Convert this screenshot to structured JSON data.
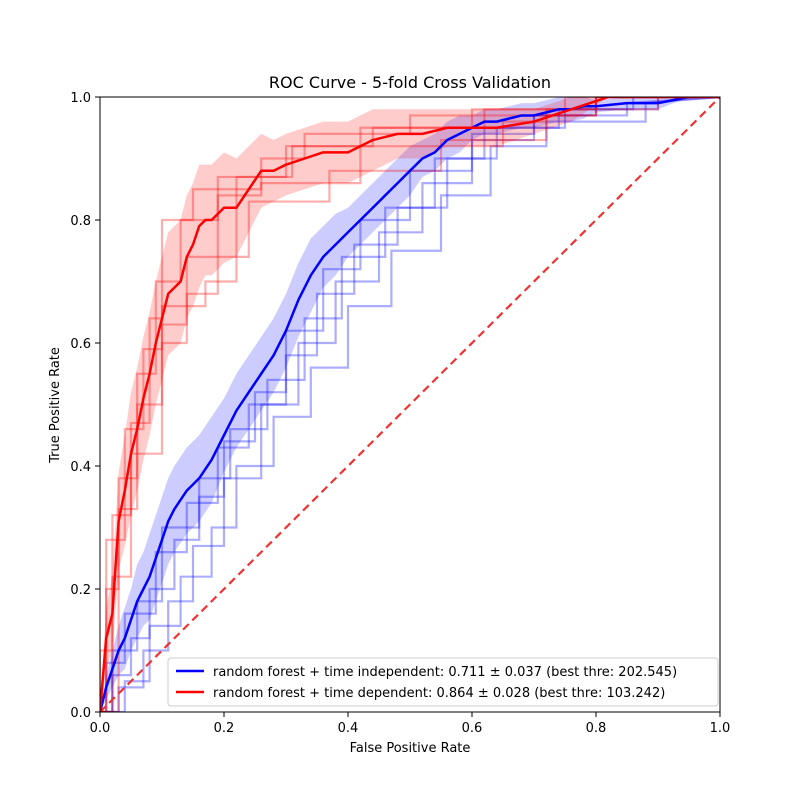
{
  "chart_data": {
    "type": "line",
    "title": "ROC Curve - 5-fold Cross Validation",
    "xlabel": "False Positive Rate",
    "ylabel": "True Positive Rate",
    "xlim": [
      0.0,
      1.0
    ],
    "ylim": [
      0.0,
      1.0
    ],
    "x_ticks": [
      "0.0",
      "0.2",
      "0.4",
      "0.6",
      "0.8",
      "1.0"
    ],
    "y_ticks": [
      "0.0",
      "0.2",
      "0.4",
      "0.6",
      "0.8",
      "1.0"
    ],
    "grid": false,
    "legend_position": "lower-right",
    "chance_line": {
      "x": [
        0,
        1
      ],
      "y": [
        0,
        1
      ],
      "color": "#ee3333",
      "style": "dashed"
    },
    "series": [
      {
        "name": "random forest + time independent: 0.711 ± 0.037 (best thre: 202.545)",
        "color": "#0000ff",
        "mean": {
          "x": [
            0,
            0.01,
            0.02,
            0.03,
            0.04,
            0.05,
            0.06,
            0.07,
            0.08,
            0.09,
            0.1,
            0.11,
            0.12,
            0.14,
            0.16,
            0.18,
            0.2,
            0.22,
            0.24,
            0.26,
            0.28,
            0.3,
            0.32,
            0.34,
            0.36,
            0.38,
            0.4,
            0.42,
            0.44,
            0.46,
            0.48,
            0.5,
            0.52,
            0.54,
            0.56,
            0.58,
            0.6,
            0.62,
            0.64,
            0.66,
            0.68,
            0.7,
            0.72,
            0.74,
            0.76,
            0.78,
            0.8,
            0.85,
            0.9,
            0.95,
            1.0
          ],
          "y": [
            0,
            0.04,
            0.07,
            0.1,
            0.12,
            0.15,
            0.18,
            0.2,
            0.22,
            0.25,
            0.28,
            0.31,
            0.33,
            0.36,
            0.38,
            0.41,
            0.45,
            0.49,
            0.52,
            0.55,
            0.58,
            0.62,
            0.67,
            0.71,
            0.74,
            0.76,
            0.78,
            0.8,
            0.82,
            0.84,
            0.86,
            0.88,
            0.9,
            0.91,
            0.93,
            0.94,
            0.95,
            0.96,
            0.96,
            0.965,
            0.97,
            0.97,
            0.975,
            0.98,
            0.98,
            0.985,
            0.985,
            0.99,
            0.99,
            1.0,
            1.0
          ]
        },
        "band_half_width": [
          0,
          0.02,
          0.03,
          0.04,
          0.05,
          0.05,
          0.06,
          0.06,
          0.07,
          0.07,
          0.07,
          0.07,
          0.07,
          0.07,
          0.07,
          0.07,
          0.06,
          0.06,
          0.06,
          0.06,
          0.06,
          0.06,
          0.06,
          0.06,
          0.05,
          0.05,
          0.04,
          0.04,
          0.04,
          0.04,
          0.04,
          0.04,
          0.03,
          0.03,
          0.03,
          0.03,
          0.02,
          0.02,
          0.02,
          0.02,
          0.02,
          0.02,
          0.02,
          0.02,
          0.02,
          0.02,
          0.01,
          0.01,
          0.01,
          0,
          0
        ],
        "folds": [
          {
            "x": [
              0,
              0.02,
              0.02,
              0.05,
              0.05,
              0.08,
              0.08,
              0.12,
              0.12,
              0.16,
              0.16,
              0.2,
              0.2,
              0.25,
              0.25,
              0.3,
              0.3,
              0.36,
              0.36,
              0.42,
              0.42,
              0.5,
              0.5,
              0.6,
              0.6,
              0.7,
              0.7,
              0.8,
              0.8,
              1.0
            ],
            "y": [
              0,
              0,
              0.06,
              0.06,
              0.12,
              0.12,
              0.2,
              0.2,
              0.28,
              0.28,
              0.35,
              0.35,
              0.44,
              0.44,
              0.52,
              0.52,
              0.62,
              0.62,
              0.72,
              0.72,
              0.8,
              0.8,
              0.88,
              0.88,
              0.94,
              0.94,
              0.97,
              0.97,
              1.0,
              1.0
            ]
          },
          {
            "x": [
              0,
              0.03,
              0.03,
              0.07,
              0.07,
              0.11,
              0.11,
              0.15,
              0.15,
              0.2,
              0.2,
              0.26,
              0.26,
              0.32,
              0.32,
              0.38,
              0.38,
              0.45,
              0.45,
              0.52,
              0.52,
              0.6,
              0.6,
              0.7,
              0.7,
              0.85,
              0.85,
              1.0
            ],
            "y": [
              0,
              0,
              0.04,
              0.04,
              0.1,
              0.1,
              0.18,
              0.18,
              0.27,
              0.27,
              0.38,
              0.38,
              0.5,
              0.5,
              0.6,
              0.6,
              0.7,
              0.7,
              0.78,
              0.78,
              0.86,
              0.86,
              0.93,
              0.93,
              0.97,
              0.97,
              0.99,
              1.0
            ]
          },
          {
            "x": [
              0,
              0.01,
              0.01,
              0.04,
              0.04,
              0.09,
              0.09,
              0.14,
              0.14,
              0.19,
              0.19,
              0.24,
              0.24,
              0.3,
              0.3,
              0.35,
              0.35,
              0.41,
              0.41,
              0.48,
              0.48,
              0.56,
              0.56,
              0.64,
              0.64,
              0.75,
              0.75,
              0.9,
              0.9,
              1.0
            ],
            "y": [
              0,
              0,
              0.08,
              0.08,
              0.16,
              0.16,
              0.26,
              0.26,
              0.34,
              0.34,
              0.43,
              0.43,
              0.5,
              0.5,
              0.58,
              0.58,
              0.68,
              0.68,
              0.76,
              0.76,
              0.82,
              0.82,
              0.9,
              0.9,
              0.95,
              0.95,
              0.98,
              0.98,
              1.0,
              1.0
            ]
          },
          {
            "x": [
              0,
              0.04,
              0.04,
              0.08,
              0.08,
              0.13,
              0.13,
              0.18,
              0.18,
              0.22,
              0.22,
              0.28,
              0.28,
              0.34,
              0.34,
              0.4,
              0.4,
              0.47,
              0.47,
              0.55,
              0.55,
              0.63,
              0.63,
              0.72,
              0.72,
              0.88,
              0.88,
              1.0
            ],
            "y": [
              0,
              0,
              0.05,
              0.05,
              0.14,
              0.14,
              0.22,
              0.22,
              0.3,
              0.3,
              0.4,
              0.4,
              0.48,
              0.48,
              0.56,
              0.56,
              0.66,
              0.66,
              0.75,
              0.75,
              0.84,
              0.84,
              0.92,
              0.92,
              0.96,
              0.96,
              0.99,
              1.0
            ]
          },
          {
            "x": [
              0,
              0.02,
              0.02,
              0.06,
              0.06,
              0.1,
              0.1,
              0.16,
              0.16,
              0.21,
              0.21,
              0.27,
              0.27,
              0.33,
              0.33,
              0.39,
              0.39,
              0.46,
              0.46,
              0.54,
              0.54,
              0.62,
              0.62,
              0.74,
              0.74,
              0.86,
              0.86,
              1.0
            ],
            "y": [
              0,
              0,
              0.1,
              0.1,
              0.18,
              0.18,
              0.3,
              0.3,
              0.38,
              0.38,
              0.46,
              0.46,
              0.54,
              0.54,
              0.64,
              0.64,
              0.74,
              0.74,
              0.82,
              0.82,
              0.9,
              0.9,
              0.95,
              0.95,
              0.98,
              0.98,
              1.0,
              1.0
            ]
          }
        ]
      },
      {
        "name": "random forest + time dependent: 0.864 ± 0.028 (best thre: 103.242)",
        "color": "#ff0000",
        "mean": {
          "x": [
            0,
            0.005,
            0.01,
            0.02,
            0.03,
            0.04,
            0.05,
            0.06,
            0.07,
            0.08,
            0.09,
            0.1,
            0.11,
            0.12,
            0.13,
            0.14,
            0.15,
            0.16,
            0.17,
            0.18,
            0.2,
            0.22,
            0.24,
            0.26,
            0.28,
            0.3,
            0.33,
            0.36,
            0.4,
            0.44,
            0.48,
            0.52,
            0.56,
            0.6,
            0.64,
            0.7,
            0.76,
            0.82,
            0.9,
            1.0
          ],
          "y": [
            0,
            0.06,
            0.12,
            0.16,
            0.31,
            0.36,
            0.42,
            0.46,
            0.51,
            0.55,
            0.6,
            0.64,
            0.68,
            0.69,
            0.7,
            0.74,
            0.76,
            0.79,
            0.8,
            0.8,
            0.82,
            0.82,
            0.85,
            0.88,
            0.88,
            0.89,
            0.9,
            0.91,
            0.91,
            0.93,
            0.94,
            0.94,
            0.95,
            0.95,
            0.95,
            0.96,
            0.98,
            1.0,
            1.0,
            1.0
          ]
        },
        "band_half_width": [
          0,
          0.03,
          0.05,
          0.06,
          0.08,
          0.09,
          0.1,
          0.1,
          0.1,
          0.1,
          0.1,
          0.1,
          0.1,
          0.1,
          0.1,
          0.1,
          0.1,
          0.1,
          0.09,
          0.09,
          0.09,
          0.08,
          0.07,
          0.06,
          0.05,
          0.05,
          0.05,
          0.05,
          0.05,
          0.05,
          0.04,
          0.04,
          0.03,
          0.03,
          0.03,
          0.02,
          0.02,
          0.0,
          0.0,
          0.0
        ],
        "folds": [
          {
            "x": [
              0,
              0.0,
              0.02,
              0.02,
              0.05,
              0.05,
              0.08,
              0.08,
              0.1,
              0.1,
              0.15,
              0.15,
              0.26,
              0.26,
              0.33,
              0.33,
              0.5,
              0.5,
              0.8,
              0.8,
              1.0
            ],
            "y": [
              0,
              0.1,
              0.1,
              0.32,
              0.32,
              0.47,
              0.47,
              0.64,
              0.64,
              0.8,
              0.8,
              0.85,
              0.85,
              0.9,
              0.9,
              0.94,
              0.94,
              0.97,
              0.97,
              1.0,
              1.0
            ]
          },
          {
            "x": [
              0,
              0.01,
              0.01,
              0.03,
              0.03,
              0.06,
              0.06,
              0.09,
              0.09,
              0.13,
              0.13,
              0.19,
              0.19,
              0.31,
              0.31,
              0.44,
              0.44,
              0.62,
              0.62,
              0.75,
              0.75,
              1.0
            ],
            "y": [
              0,
              0,
              0.2,
              0.2,
              0.38,
              0.38,
              0.55,
              0.55,
              0.7,
              0.7,
              0.8,
              0.8,
              0.87,
              0.87,
              0.92,
              0.92,
              0.95,
              0.95,
              0.98,
              0.98,
              1.0,
              1.0
            ]
          },
          {
            "x": [
              0,
              0.02,
              0.02,
              0.05,
              0.05,
              0.1,
              0.1,
              0.14,
              0.14,
              0.19,
              0.19,
              0.26,
              0.26,
              0.42,
              0.42,
              0.6,
              0.6,
              0.8,
              0.8,
              1.0
            ],
            "y": [
              0,
              0,
              0.22,
              0.22,
              0.42,
              0.42,
              0.6,
              0.6,
              0.68,
              0.68,
              0.84,
              0.84,
              0.86,
              0.86,
              0.95,
              0.95,
              0.98,
              0.98,
              1.0,
              1.0
            ]
          },
          {
            "x": [
              0,
              0.01,
              0.01,
              0.04,
              0.04,
              0.07,
              0.07,
              0.1,
              0.1,
              0.17,
              0.17,
              0.22,
              0.22,
              0.3,
              0.3,
              0.65,
              0.65,
              0.72,
              0.72,
              0.9,
              0.9,
              1.0
            ],
            "y": [
              0,
              0,
              0.28,
              0.28,
              0.46,
              0.46,
              0.59,
              0.59,
              0.66,
              0.66,
              0.7,
              0.7,
              0.87,
              0.87,
              0.92,
              0.92,
              0.96,
              0.96,
              0.98,
              0.98,
              1.0,
              1.0
            ]
          },
          {
            "x": [
              0,
              0.03,
              0.03,
              0.06,
              0.06,
              0.1,
              0.1,
              0.14,
              0.14,
              0.24,
              0.24,
              0.37,
              0.37,
              0.55,
              0.55,
              0.72,
              0.72,
              0.8,
              0.8,
              1.0
            ],
            "y": [
              0,
              0,
              0.33,
              0.33,
              0.5,
              0.5,
              0.63,
              0.63,
              0.74,
              0.74,
              0.83,
              0.83,
              0.88,
              0.88,
              0.93,
              0.93,
              0.97,
              0.97,
              1.0,
              1.0
            ]
          }
        ]
      }
    ]
  }
}
